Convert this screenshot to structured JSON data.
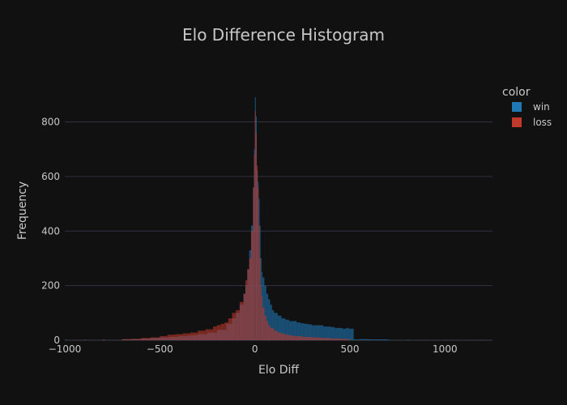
{
  "chart_data": {
    "type": "bar",
    "title": "Elo Difference Histogram",
    "xlabel": "Elo Diff",
    "ylabel": "Frequency",
    "xlim": [
      -1000,
      1250
    ],
    "ylim": [
      0,
      950
    ],
    "x_ticks": [
      -1000,
      -500,
      0,
      500,
      1000
    ],
    "x_tick_labels": [
      "−1000",
      "−500",
      "0",
      "500",
      "1000"
    ],
    "y_ticks": [
      0,
      200,
      400,
      600,
      800
    ],
    "y_tick_labels": [
      "0",
      "200",
      "400",
      "600",
      "800"
    ],
    "grid": true,
    "legend": {
      "title": "color",
      "placement": "top-right",
      "entries": [
        {
          "name": "win",
          "color": "#1f77b4"
        },
        {
          "name": "loss",
          "color": "#c0392b"
        }
      ]
    },
    "series": [
      {
        "name": "win",
        "color": "#1f77b4",
        "bins": [
          [
            -1000,
            2
          ],
          [
            -900,
            1
          ],
          [
            -800,
            2
          ],
          [
            -700,
            3
          ],
          [
            -650,
            4
          ],
          [
            -600,
            5
          ],
          [
            -550,
            8
          ],
          [
            -500,
            10
          ],
          [
            -450,
            12
          ],
          [
            -400,
            15
          ],
          [
            -350,
            18
          ],
          [
            -300,
            22
          ],
          [
            -250,
            28
          ],
          [
            -200,
            38
          ],
          [
            -150,
            60
          ],
          [
            -120,
            80
          ],
          [
            -100,
            100
          ],
          [
            -80,
            130
          ],
          [
            -60,
            170
          ],
          [
            -50,
            200
          ],
          [
            -40,
            260
          ],
          [
            -30,
            330
          ],
          [
            -20,
            420
          ],
          [
            -10,
            560
          ],
          [
            -5,
            700
          ],
          [
            0,
            890
          ],
          [
            5,
            820
          ],
          [
            10,
            620
          ],
          [
            15,
            580
          ],
          [
            20,
            520
          ],
          [
            25,
            420
          ],
          [
            30,
            300
          ],
          [
            35,
            250
          ],
          [
            40,
            230
          ],
          [
            50,
            200
          ],
          [
            60,
            170
          ],
          [
            70,
            150
          ],
          [
            80,
            130
          ],
          [
            90,
            110
          ],
          [
            100,
            100
          ],
          [
            120,
            90
          ],
          [
            140,
            80
          ],
          [
            160,
            75
          ],
          [
            180,
            70
          ],
          [
            200,
            70
          ],
          [
            220,
            65
          ],
          [
            240,
            62
          ],
          [
            260,
            60
          ],
          [
            280,
            58
          ],
          [
            300,
            55
          ],
          [
            320,
            55
          ],
          [
            340,
            55
          ],
          [
            360,
            50
          ],
          [
            380,
            50
          ],
          [
            400,
            48
          ],
          [
            420,
            45
          ],
          [
            440,
            45
          ],
          [
            460,
            42
          ],
          [
            480,
            45
          ],
          [
            495,
            42
          ],
          [
            520,
            3
          ],
          [
            550,
            4
          ],
          [
            600,
            3
          ],
          [
            650,
            3
          ],
          [
            700,
            2
          ],
          [
            800,
            2
          ],
          [
            900,
            1
          ],
          [
            1000,
            1
          ],
          [
            1100,
            1
          ],
          [
            1200,
            2
          ]
        ]
      },
      {
        "name": "loss",
        "color": "#c0392b",
        "bins": [
          [
            -900,
            2
          ],
          [
            -800,
            3
          ],
          [
            -700,
            4
          ],
          [
            -650,
            5
          ],
          [
            -600,
            8
          ],
          [
            -550,
            10
          ],
          [
            -500,
            15
          ],
          [
            -460,
            20
          ],
          [
            -420,
            22
          ],
          [
            -380,
            25
          ],
          [
            -340,
            28
          ],
          [
            -300,
            35
          ],
          [
            -260,
            40
          ],
          [
            -220,
            50
          ],
          [
            -200,
            55
          ],
          [
            -180,
            60
          ],
          [
            -160,
            65
          ],
          [
            -140,
            80
          ],
          [
            -120,
            100
          ],
          [
            -100,
            110
          ],
          [
            -80,
            140
          ],
          [
            -60,
            170
          ],
          [
            -50,
            220
          ],
          [
            -40,
            260
          ],
          [
            -30,
            300
          ],
          [
            -20,
            400
          ],
          [
            -10,
            560
          ],
          [
            -5,
            680
          ],
          [
            0,
            840
          ],
          [
            5,
            760
          ],
          [
            10,
            640
          ],
          [
            15,
            560
          ],
          [
            20,
            420
          ],
          [
            25,
            300
          ],
          [
            30,
            200
          ],
          [
            35,
            160
          ],
          [
            40,
            120
          ],
          [
            50,
            90
          ],
          [
            60,
            70
          ],
          [
            70,
            55
          ],
          [
            80,
            45
          ],
          [
            100,
            35
          ],
          [
            120,
            28
          ],
          [
            140,
            24
          ],
          [
            160,
            20
          ],
          [
            180,
            18
          ],
          [
            200,
            15
          ],
          [
            250,
            12
          ],
          [
            300,
            10
          ],
          [
            350,
            8
          ],
          [
            400,
            6
          ],
          [
            450,
            5
          ],
          [
            495,
            3
          ]
        ]
      }
    ]
  }
}
